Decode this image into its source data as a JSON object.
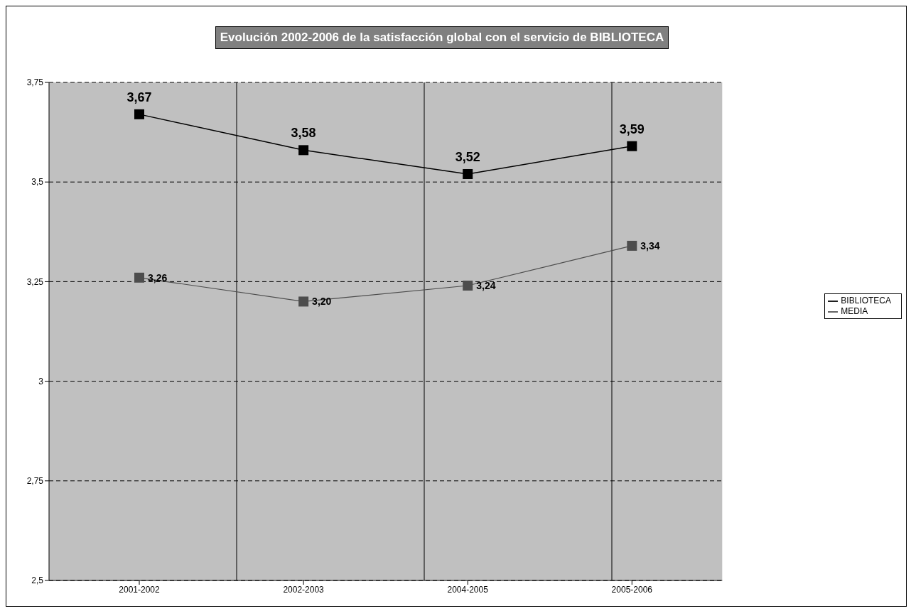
{
  "chart_data": {
    "type": "line",
    "title": "Evolución 2002-2006 de la satisfacción global con el servicio de BIBLIOTECA",
    "categories": [
      "2001-2002",
      "2002-2003",
      "2004-2005",
      "2005-2006"
    ],
    "series": [
      {
        "name": "BIBLIOTECA",
        "color": "#000000",
        "values": [
          3.67,
          3.58,
          3.52,
          3.59
        ],
        "value_labels": [
          "3,67",
          "3,58",
          "3,52",
          "3,59"
        ]
      },
      {
        "name": "MEDIA",
        "color": "#4d4d4d",
        "values": [
          3.26,
          3.2,
          3.24,
          3.34
        ],
        "value_labels": [
          "3,26",
          "3,20",
          "3,24",
          "3,34"
        ]
      }
    ],
    "ylim": [
      2.5,
      3.75
    ],
    "yticks": [
      {
        "value": 2.5,
        "label": "2,5"
      },
      {
        "value": 2.75,
        "label": "2,75"
      },
      {
        "value": 3,
        "label": "3"
      },
      {
        "value": 3.25,
        "label": "3,25"
      },
      {
        "value": 3.5,
        "label": "3,5"
      },
      {
        "value": 3.75,
        "label": "3,75"
      }
    ],
    "grid": true,
    "legend": "right",
    "marker": "square",
    "line_style": "solid"
  }
}
